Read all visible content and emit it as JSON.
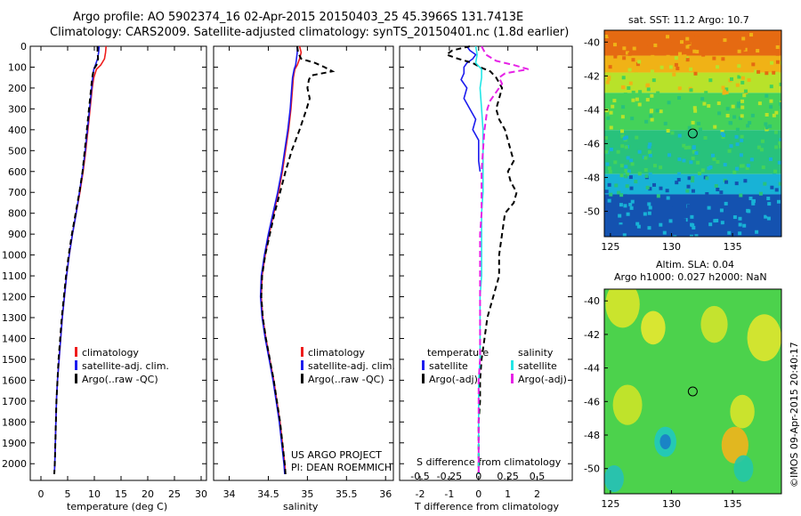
{
  "header": {
    "line1": "Argo profile: AO 5902374_16 02-Apr-2015 20150403_25 45.3966S 131.7413E",
    "line2": "Climatology: CARS2009. Satellite-adjusted climatology: synTS_20150401.nc (1.8d earlier)"
  },
  "credits": {
    "project": "US ARGO PROJECT",
    "pi": "PI: DEAN ROEMMICH",
    "imos": "©IMOS 09-Apr-2015 20:40:17"
  },
  "colors": {
    "climatology": "#ee1c1c",
    "satellite": "#1c1cee",
    "argo": "#000000",
    "sat_salinity": "#22e6e6",
    "argo_salinity": "#e622e6"
  },
  "chart_data": [
    {
      "id": "temperature",
      "type": "line",
      "xlabel": "temperature (deg C)",
      "xlim": [
        -2,
        31
      ],
      "xticks": [
        0,
        5,
        10,
        15,
        20,
        25,
        30
      ],
      "ylim": [
        2080,
        0
      ],
      "yticks": [
        0,
        100,
        200,
        300,
        400,
        500,
        600,
        700,
        800,
        900,
        1000,
        1100,
        1200,
        1300,
        1400,
        1500,
        1600,
        1700,
        1800,
        1900,
        2000
      ],
      "legend": [
        "climatology",
        "satellite-adj. clim.",
        "Argo(..raw -QC)"
      ],
      "series": [
        {
          "name": "climatology",
          "color": "#ee1c1c",
          "dash": "",
          "y": [
            0,
            30,
            60,
            90,
            110,
            150,
            200,
            300,
            400,
            500,
            600,
            700,
            800,
            900,
            1000,
            1100,
            1200,
            1300,
            1400,
            1500,
            1600,
            1700,
            1800,
            1900,
            2000,
            2050
          ],
          "x": [
            12.2,
            12.1,
            11.9,
            11.2,
            10.4,
            9.9,
            9.6,
            9.2,
            8.8,
            8.4,
            7.9,
            7.3,
            6.6,
            5.9,
            5.3,
            4.8,
            4.4,
            4.0,
            3.7,
            3.4,
            3.1,
            2.9,
            2.8,
            2.7,
            2.6,
            2.5
          ]
        },
        {
          "name": "satellite-adj. clim.",
          "color": "#1c1cee",
          "dash": "",
          "y": [
            0,
            30,
            60,
            90,
            110,
            150,
            200,
            300,
            400,
            500,
            600,
            700,
            800,
            900,
            1000,
            1100,
            1200,
            1300,
            1400,
            1500,
            1600,
            1700,
            1800,
            1900,
            2000,
            2050
          ],
          "x": [
            10.9,
            10.8,
            10.6,
            10.2,
            9.9,
            9.7,
            9.5,
            9.1,
            8.7,
            8.3,
            7.8,
            7.2,
            6.6,
            5.9,
            5.3,
            4.8,
            4.4,
            4.0,
            3.7,
            3.4,
            3.1,
            2.9,
            2.8,
            2.7,
            2.6,
            2.5
          ]
        },
        {
          "name": "Argo(..raw -QC)",
          "color": "#000000",
          "dash": "6,4",
          "y": [
            0,
            30,
            60,
            90,
            110,
            150,
            200,
            300,
            400,
            500,
            600,
            700,
            800,
            900,
            1000,
            1100,
            1200,
            1300,
            1400,
            1500,
            1600,
            1700,
            1800,
            1900,
            2000,
            2050
          ],
          "x": [
            10.6,
            10.6,
            10.7,
            10.4,
            9.9,
            9.6,
            9.4,
            9.0,
            8.6,
            8.2,
            7.8,
            7.2,
            6.5,
            5.8,
            5.2,
            4.7,
            4.3,
            3.9,
            3.6,
            3.3,
            3.1,
            2.9,
            2.8,
            2.7,
            2.6,
            2.5
          ]
        }
      ]
    },
    {
      "id": "salinity",
      "type": "line",
      "xlabel": "salinity",
      "xlim": [
        33.8,
        36.1
      ],
      "xticks": [
        34,
        34.5,
        35,
        35.5,
        36
      ],
      "ylim": [
        2080,
        0
      ],
      "legend": [
        "climatology",
        "satellite-adj. clim.",
        "Argo(..raw -QC)"
      ],
      "series": [
        {
          "name": "climatology",
          "color": "#ee1c1c",
          "dash": "",
          "y": [
            0,
            30,
            60,
            90,
            110,
            150,
            200,
            300,
            400,
            500,
            600,
            700,
            800,
            900,
            1000,
            1100,
            1200,
            1300,
            1400,
            1500,
            1600,
            1700,
            1800,
            1900,
            2000,
            2050
          ],
          "x": [
            34.9,
            34.92,
            34.9,
            34.87,
            34.84,
            34.82,
            34.81,
            34.79,
            34.76,
            34.72,
            34.68,
            34.63,
            34.57,
            34.51,
            34.46,
            34.42,
            34.41,
            34.43,
            34.47,
            34.52,
            34.57,
            34.61,
            34.65,
            34.68,
            34.71,
            34.72
          ]
        },
        {
          "name": "satellite-adj. clim.",
          "color": "#1c1cee",
          "dash": "",
          "y": [
            0,
            30,
            60,
            90,
            110,
            150,
            200,
            300,
            400,
            500,
            600,
            700,
            800,
            900,
            1000,
            1100,
            1200,
            1300,
            1400,
            1500,
            1600,
            1700,
            1800,
            1900,
            2000,
            2050
          ],
          "x": [
            34.87,
            34.87,
            34.86,
            34.85,
            34.83,
            34.81,
            34.8,
            34.78,
            34.75,
            34.71,
            34.67,
            34.62,
            34.56,
            34.5,
            34.45,
            34.41,
            34.4,
            34.42,
            34.46,
            34.51,
            34.56,
            34.6,
            34.64,
            34.67,
            34.7,
            34.71
          ]
        },
        {
          "name": "Argo(..raw -QC)",
          "color": "#000000",
          "dash": "6,4",
          "y": [
            0,
            30,
            60,
            80,
            100,
            120,
            140,
            160,
            200,
            250,
            300,
            400,
            500,
            600,
            700,
            800,
            900,
            1000,
            1100,
            1200,
            1300,
            1400,
            1500,
            1600,
            1700,
            1800,
            1900,
            2000,
            2050
          ],
          "x": [
            34.87,
            34.88,
            34.92,
            35.1,
            35.22,
            35.32,
            35.05,
            35.02,
            35.0,
            35.03,
            34.99,
            34.9,
            34.8,
            34.72,
            34.65,
            34.58,
            34.52,
            34.46,
            34.42,
            34.41,
            34.43,
            34.47,
            34.52,
            34.57,
            34.61,
            34.65,
            34.68,
            34.71,
            34.72
          ]
        }
      ]
    },
    {
      "id": "differences",
      "type": "line",
      "xlabel": "T difference from climatology",
      "xlim": [
        -2.7,
        3.2
      ],
      "xticks": [
        -2,
        -1,
        0,
        1,
        2
      ],
      "top_axis_label": "S difference from climatology",
      "top_xticks": [
        -0.5,
        -0.25,
        0,
        0.25,
        0.5
      ],
      "top_xscale": 4,
      "ylim": [
        2080,
        0
      ],
      "legend_left_title": "temperature",
      "legend_right_title": "salinity",
      "legend": [
        "satellite",
        "Argo(-adj)",
        "satellite",
        "Argo(-adj)"
      ],
      "series": [
        {
          "name": "temperature satellite",
          "color": "#1c1cee",
          "dash": "",
          "y": [
            0,
            20,
            40,
            60,
            80,
            100,
            130,
            160,
            200,
            250,
            300,
            350,
            400,
            450,
            500,
            550,
            600
          ],
          "x": [
            -0.4,
            -0.3,
            -0.1,
            -0.2,
            -0.4,
            -0.5,
            -0.5,
            -0.6,
            -0.4,
            -0.5,
            -0.3,
            -0.1,
            -0.2,
            0.0,
            0.0,
            0.0,
            0.05
          ]
        },
        {
          "name": "temperature Argo(-adj)",
          "color": "#000000",
          "dash": "6,4",
          "y": [
            0,
            20,
            40,
            60,
            80,
            100,
            120,
            150,
            200,
            250,
            300,
            350,
            400,
            450,
            500,
            550,
            600,
            650,
            700,
            750,
            800,
            900,
            1000,
            1100,
            1200,
            1300,
            1400,
            1500,
            1600,
            1700,
            1800,
            1900,
            2000,
            2050
          ],
          "x": [
            -0.3,
            -0.9,
            -1.1,
            -0.7,
            -0.2,
            0.05,
            0.4,
            0.6,
            0.8,
            0.7,
            0.6,
            0.7,
            0.9,
            1.0,
            1.1,
            1.2,
            1.0,
            1.1,
            1.3,
            1.2,
            0.9,
            0.8,
            0.7,
            0.7,
            0.5,
            0.3,
            0.2,
            0.1,
            0.05,
            0.05,
            0.0,
            0.0,
            0.0,
            0.0
          ]
        },
        {
          "name": "salinity satellite",
          "color": "#22e6e6",
          "dash": "",
          "y": [
            0,
            40,
            80,
            110,
            150,
            200,
            300,
            400,
            500,
            600,
            700,
            800,
            900,
            1000,
            1100,
            1200,
            1300,
            1400,
            1500,
            1600,
            1700,
            1800,
            1900,
            2000,
            2050
          ],
          "x": [
            -0.1,
            -0.05,
            -0.1,
            0.1,
            0.1,
            0.05,
            0.1,
            0.15,
            0.15,
            0.15,
            0.15,
            0.1,
            0.1,
            0.1,
            0.1,
            0.05,
            0.05,
            0.05,
            0.05,
            0.0,
            0.0,
            0.0,
            0.0,
            0.0,
            0.0
          ]
        },
        {
          "name": "salinity Argo(-adj)",
          "color": "#e622e6",
          "dash": "7,4",
          "y": [
            0,
            40,
            70,
            90,
            110,
            130,
            150,
            180,
            220,
            260,
            300,
            400,
            500,
            600,
            700,
            800,
            900,
            1000,
            1100,
            1200,
            1300,
            1400,
            1500,
            1600,
            1700,
            1800,
            1900,
            2000,
            2050
          ],
          "x": [
            0.1,
            0.25,
            0.6,
            1.2,
            1.7,
            0.9,
            0.7,
            0.8,
            0.6,
            0.4,
            0.3,
            0.2,
            0.15,
            0.1,
            0.1,
            0.1,
            0.05,
            0.05,
            0.05,
            0.05,
            0.05,
            0.05,
            0.05,
            0.0,
            0.0,
            0.0,
            0.0,
            0.0,
            0.0
          ]
        }
      ]
    },
    {
      "id": "sst_map",
      "type": "heatmap",
      "title": "sat. SST: 11.2 Argo: 10.7",
      "xlim": [
        124.5,
        139
      ],
      "ylim": [
        -51.5,
        -39.3
      ],
      "xticks": [
        125,
        130,
        135
      ],
      "yticks": [
        -40,
        -42,
        -44,
        -46,
        -48,
        -50
      ],
      "marker": {
        "lon": 131.74,
        "lat": -45.4
      },
      "bands": [
        {
          "lat_top": -39.3,
          "lat_bottom": -40.8,
          "color": "#e56a12"
        },
        {
          "lat_top": -40.8,
          "lat_bottom": -41.8,
          "color": "#f0b216"
        },
        {
          "lat_top": -41.8,
          "lat_bottom": -43.0,
          "color": "#b8e22a"
        },
        {
          "lat_top": -43.0,
          "lat_bottom": -45.2,
          "color": "#44d25a"
        },
        {
          "lat_top": -45.2,
          "lat_bottom": -47.8,
          "color": "#28c27c"
        },
        {
          "lat_top": -47.8,
          "lat_bottom": -49.0,
          "color": "#18b2d6"
        },
        {
          "lat_top": -49.0,
          "lat_bottom": -51.5,
          "color": "#1452b0"
        }
      ]
    },
    {
      "id": "sla_map",
      "type": "heatmap",
      "title": "Altim. SLA: 0.04",
      "subtitle": "Argo h1000: 0.027 h2000: NaN",
      "xlim": [
        124.5,
        139
      ],
      "ylim": [
        -51.5,
        -39.3
      ],
      "xticks": [
        125,
        130,
        135
      ],
      "yticks": [
        -40,
        -42,
        -44,
        -46,
        -48,
        -50
      ],
      "marker": {
        "lon": 131.74,
        "lat": -45.4
      },
      "base_color": "#4cd24c",
      "blobs": [
        {
          "lon": 126.0,
          "lat": -40.2,
          "r": 1.4,
          "color": "#d8e62a"
        },
        {
          "lon": 128.5,
          "lat": -41.6,
          "r": 1.0,
          "color": "#e8e830"
        },
        {
          "lon": 133.5,
          "lat": -41.4,
          "r": 1.1,
          "color": "#d2e42c"
        },
        {
          "lon": 137.6,
          "lat": -42.2,
          "r": 1.4,
          "color": "#e0e62e"
        },
        {
          "lon": 126.4,
          "lat": -46.2,
          "r": 1.2,
          "color": "#cce428"
        },
        {
          "lon": 135.8,
          "lat": -46.6,
          "r": 1.0,
          "color": "#d8e42a"
        },
        {
          "lon": 129.5,
          "lat": -48.4,
          "r": 0.9,
          "color": "#20c8c0"
        },
        {
          "lon": 129.5,
          "lat": -48.4,
          "r": 0.45,
          "color": "#1a7cc8"
        },
        {
          "lon": 135.2,
          "lat": -48.6,
          "r": 1.1,
          "color": "#f2b41c"
        },
        {
          "lon": 135.9,
          "lat": -50.0,
          "r": 0.8,
          "color": "#24c6a8"
        },
        {
          "lon": 125.3,
          "lat": -50.6,
          "r": 0.8,
          "color": "#26c0b8"
        }
      ]
    }
  ]
}
